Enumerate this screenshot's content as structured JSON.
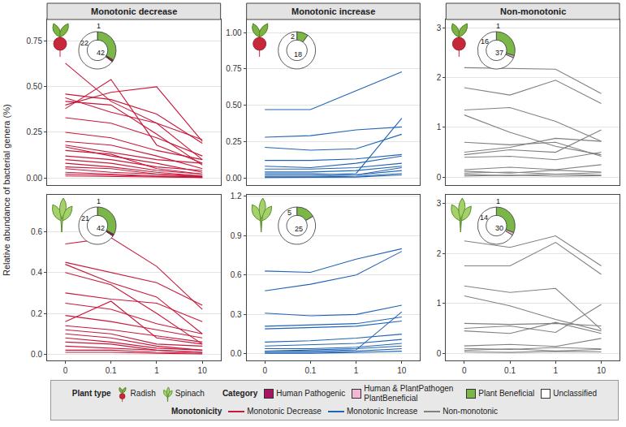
{
  "chart_data": [
    {
      "type": "line",
      "title": "Monotonic decrease",
      "plant": "Radish",
      "x": [
        "0",
        "0.1",
        "1",
        "10"
      ],
      "color": "#c8173a",
      "ylim": [
        -0.04,
        0.87
      ],
      "yticks": [
        {
          "value": 0,
          "label": "0.00"
        },
        0.25,
        {
          "value": 0.5,
          "label": "0.50"
        },
        0.75
      ],
      "grid": true,
      "tick_labels": "y",
      "series": [
        {
          "values": [
            0.63,
            0.42,
            0.3,
            0.21
          ]
        },
        {
          "values": [
            0.46,
            0.43,
            0.35,
            0.19
          ]
        },
        {
          "values": [
            0.44,
            0.36,
            0.3,
            0.1
          ]
        },
        {
          "values": [
            0.42,
            0.4,
            0.24,
            0.07
          ]
        },
        {
          "values": [
            0.38,
            0.54,
            0.18,
            0.08
          ]
        },
        {
          "values": [
            0.4,
            0.47,
            0.5,
            0.2
          ]
        },
        {
          "values": [
            0.33,
            0.3,
            0.22,
            0.12
          ]
        },
        {
          "values": [
            0.25,
            0.22,
            0.15,
            0.1
          ]
        },
        {
          "values": [
            0.2,
            0.18,
            0.12,
            0.05
          ]
        },
        {
          "values": [
            0.18,
            0.14,
            0.1,
            0.08
          ]
        },
        {
          "values": [
            0.17,
            0.12,
            0.08,
            0.03
          ]
        },
        {
          "values": [
            0.15,
            0.13,
            0.05,
            0.02
          ]
        },
        {
          "values": [
            0.12,
            0.1,
            0.06,
            0.04
          ]
        },
        {
          "values": [
            0.1,
            0.08,
            0.04,
            0.02
          ]
        },
        {
          "values": [
            0.08,
            0.06,
            0.03,
            0.01
          ]
        },
        {
          "values": [
            0.06,
            0.05,
            0.02,
            0.01
          ]
        },
        {
          "values": [
            0.05,
            0.03,
            0.02,
            0.005
          ]
        },
        {
          "values": [
            0.03,
            0.02,
            0.01,
            0.005
          ]
        },
        {
          "values": [
            0.02,
            0.015,
            0.01,
            0.002
          ]
        },
        {
          "values": [
            0.01,
            0.008,
            0.004,
            0.001
          ]
        }
      ],
      "inset": {
        "type": "pie",
        "categories": [
          "Plant Beneficial",
          "Unclassified",
          "Human Pathogenic"
        ],
        "values": [
          22,
          42,
          1
        ],
        "colors": [
          "#7ab648",
          "#ffffff",
          "#a8155f"
        ],
        "data_labels": true
      }
    },
    {
      "type": "line",
      "title": "Monotonic increase",
      "plant": "Radish",
      "x": [
        "0",
        "0.1",
        "1",
        "10"
      ],
      "color": "#2164b5",
      "ylim": [
        -0.05,
        1.09
      ],
      "yticks": [
        {
          "value": 0,
          "label": "0.00"
        },
        0.25,
        {
          "value": 0.5,
          "label": "0.50"
        },
        0.75,
        {
          "value": 1,
          "label": "1.00"
        }
      ],
      "grid": true,
      "tick_labels": "y",
      "series": [
        {
          "values": [
            0.47,
            0.47,
            0.6,
            0.73
          ]
        },
        {
          "values": [
            0.28,
            0.29,
            0.33,
            0.35
          ]
        },
        {
          "values": [
            0.21,
            0.19,
            0.2,
            0.3
          ]
        },
        {
          "values": [
            0.12,
            0.12,
            0.13,
            0.16
          ]
        },
        {
          "values": [
            0.08,
            0.07,
            0.1,
            0.15
          ]
        },
        {
          "values": [
            0.02,
            0.02,
            0.03,
            0.41
          ]
        },
        {
          "values": [
            0.06,
            0.06,
            0.07,
            0.1
          ]
        },
        {
          "values": [
            0.04,
            0.04,
            0.05,
            0.08
          ]
        },
        {
          "values": [
            0.03,
            0.03,
            0.02,
            0.07
          ]
        },
        {
          "values": [
            0.01,
            0.01,
            0.02,
            0.05
          ]
        },
        {
          "values": [
            0.005,
            0.005,
            0.01,
            0.03
          ]
        },
        {
          "values": [
            0.002,
            0.002,
            0.005,
            0.02
          ]
        }
      ],
      "inset": {
        "type": "pie",
        "categories": [
          "Plant Beneficial",
          "Unclassified"
        ],
        "values": [
          2,
          18
        ],
        "colors": [
          "#7ab648",
          "#ffffff"
        ],
        "data_labels": true
      }
    },
    {
      "type": "line",
      "title": "Non-monotonic",
      "plant": "Radish",
      "x": [
        "0",
        "0.1",
        "1",
        "10"
      ],
      "color": "#808080",
      "ylim": [
        -0.16,
        3.17
      ],
      "yticks": [
        0,
        1,
        2,
        3
      ],
      "grid": true,
      "tick_labels": "y",
      "series": [
        {
          "values": [
            2.2,
            2.18,
            2.17,
            1.68
          ]
        },
        {
          "values": [
            1.8,
            1.65,
            1.95,
            1.48
          ]
        },
        {
          "values": [
            1.35,
            1.4,
            1.12,
            0.72
          ]
        },
        {
          "values": [
            1.25,
            0.9,
            0.62,
            0.45
          ]
        },
        {
          "values": [
            0.7,
            0.65,
            0.7,
            0.42
          ]
        },
        {
          "values": [
            0.5,
            0.6,
            0.78,
            0.72
          ]
        },
        {
          "values": [
            0.45,
            0.55,
            0.5,
            0.95
          ]
        },
        {
          "values": [
            0.4,
            0.42,
            0.35,
            0.5
          ]
        },
        {
          "values": [
            0.15,
            0.2,
            0.15,
            0.25
          ]
        },
        {
          "values": [
            0.12,
            0.08,
            0.14,
            0.1
          ]
        },
        {
          "values": [
            0.08,
            0.1,
            0.06,
            0.09
          ]
        },
        {
          "values": [
            0.05,
            0.03,
            0.06,
            0.04
          ]
        },
        {
          "values": [
            0.02,
            0.04,
            0.02,
            0.03
          ]
        }
      ],
      "inset": {
        "type": "pie",
        "categories": [
          "Plant Beneficial",
          "Unclassified",
          "Human & PlantPathogen PlantBeneficial"
        ],
        "values": [
          16,
          37,
          1
        ],
        "colors": [
          "#7ab648",
          "#ffffff",
          "#f2b8d3"
        ],
        "data_labels": true
      }
    },
    {
      "type": "line",
      "plant": "Spinach",
      "x": [
        "0",
        "0.1",
        "1",
        "10"
      ],
      "color": "#c8173a",
      "ylim": [
        -0.03,
        0.78
      ],
      "yticks": [
        {
          "value": 0,
          "label": "0.0"
        },
        0.2,
        0.4,
        0.6
      ],
      "grid": true,
      "series": [
        {
          "values": [
            0.54,
            0.57,
            0.43,
            0.22
          ]
        },
        {
          "values": [
            0.45,
            0.4,
            0.35,
            0.24
          ]
        },
        {
          "values": [
            0.44,
            0.35,
            0.28,
            0.1
          ]
        },
        {
          "values": [
            0.4,
            0.34,
            0.2,
            0.05
          ]
        },
        {
          "values": [
            0.3,
            0.27,
            0.25,
            0.16
          ]
        },
        {
          "values": [
            0.25,
            0.22,
            0.15,
            0.1
          ]
        },
        {
          "values": [
            0.19,
            0.16,
            0.12,
            0.08
          ]
        },
        {
          "values": [
            0.16,
            0.26,
            0.08,
            0.05
          ]
        },
        {
          "values": [
            0.14,
            0.12,
            0.09,
            0.06
          ]
        },
        {
          "values": [
            0.12,
            0.1,
            0.05,
            0.04
          ]
        },
        {
          "values": [
            0.1,
            0.08,
            0.04,
            0.02
          ]
        },
        {
          "values": [
            0.08,
            0.06,
            0.03,
            0.02
          ]
        },
        {
          "values": [
            0.06,
            0.05,
            0.02,
            0.01
          ]
        },
        {
          "values": [
            0.04,
            0.03,
            0.02,
            0.01
          ]
        },
        {
          "values": [
            0.02,
            0.02,
            0.01,
            0.005
          ]
        },
        {
          "values": [
            0.01,
            0.01,
            0.005,
            0.002
          ]
        }
      ],
      "inset": {
        "type": "pie",
        "categories": [
          "Plant Beneficial",
          "Unclassified",
          "Human Pathogenic"
        ],
        "values": [
          21,
          42,
          1
        ],
        "colors": [
          "#7ab648",
          "#ffffff",
          "#a8155f"
        ],
        "data_labels": true
      }
    },
    {
      "type": "line",
      "plant": "Spinach",
      "x": [
        "0",
        "0.1",
        "1",
        "10"
      ],
      "color": "#2164b5",
      "ylim": [
        -0.05,
        1.21
      ],
      "yticks": [
        {
          "value": 0,
          "label": "0.0"
        },
        0.3,
        0.6,
        0.9,
        1.2
      ],
      "grid": true,
      "series": [
        {
          "values": [
            0.63,
            0.62,
            0.72,
            0.8
          ]
        },
        {
          "values": [
            0.48,
            0.53,
            0.6,
            0.78
          ]
        },
        {
          "values": [
            0.31,
            0.29,
            0.3,
            0.37
          ]
        },
        {
          "values": [
            0.21,
            0.22,
            0.23,
            0.28
          ]
        },
        {
          "values": [
            0.19,
            0.2,
            0.21,
            0.25
          ]
        },
        {
          "values": [
            0.09,
            0.1,
            0.12,
            0.15
          ]
        },
        {
          "values": [
            0.06,
            0.07,
            0.08,
            0.11
          ]
        },
        {
          "values": [
            0.02,
            0.02,
            0.03,
            0.32
          ]
        },
        {
          "values": [
            0.04,
            0.04,
            0.05,
            0.08
          ]
        },
        {
          "values": [
            0.02,
            0.03,
            0.04,
            0.06
          ]
        },
        {
          "values": [
            0.01,
            0.01,
            0.02,
            0.04
          ]
        },
        {
          "values": [
            0.005,
            0.005,
            0.01,
            0.02
          ]
        }
      ],
      "inset": {
        "type": "pie",
        "categories": [
          "Plant Beneficial",
          "Unclassified"
        ],
        "values": [
          5,
          25
        ],
        "colors": [
          "#7ab648",
          "#ffffff"
        ],
        "data_labels": true
      }
    },
    {
      "type": "line",
      "plant": "Spinach",
      "x": [
        "0",
        "0.1",
        "1",
        "10"
      ],
      "color": "#808080",
      "ylim": [
        -0.14,
        3.17
      ],
      "yticks": [
        0,
        1,
        2,
        3
      ],
      "grid": true,
      "series": [
        {
          "values": [
            2.25,
            2.12,
            2.35,
            1.75
          ]
        },
        {
          "values": [
            1.75,
            1.75,
            2.22,
            1.58
          ]
        },
        {
          "values": [
            1.35,
            1.22,
            1.3,
            0.48
          ]
        },
        {
          "values": [
            1.15,
            0.95,
            0.68,
            0.45
          ]
        },
        {
          "values": [
            0.6,
            0.58,
            0.6,
            0.55
          ]
        },
        {
          "values": [
            0.5,
            0.55,
            0.42,
            0.98
          ]
        },
        {
          "values": [
            0.45,
            0.4,
            0.62,
            0.4
          ]
        },
        {
          "values": [
            0.15,
            0.18,
            0.14,
            0.3
          ]
        },
        {
          "values": [
            0.1,
            0.08,
            0.12,
            0.09
          ]
        },
        {
          "values": [
            0.06,
            0.09,
            0.05,
            0.08
          ]
        },
        {
          "values": [
            0.03,
            0.02,
            0.04,
            0.03
          ]
        }
      ],
      "inset": {
        "type": "pie",
        "categories": [
          "Plant Beneficial",
          "Unclassified",
          "Human & PlantPathogen PlantBeneficial"
        ],
        "values": [
          14,
          30,
          1
        ],
        "colors": [
          "#7ab648",
          "#ffffff",
          "#f2b8d3"
        ],
        "data_labels": true
      }
    }
  ],
  "ylabel": "Relative abundance of bacterial genera (%)",
  "key": [
    {
      "title": "Plant type",
      "marker": "icon",
      "items": [
        {
          "name": "Radish"
        },
        {
          "name": "Spinach"
        }
      ]
    },
    {
      "title": "Category",
      "marker": "square",
      "items": [
        {
          "name": "Human Pathogenic",
          "color": "#a8155f"
        },
        {
          "name": "Human & PlantPathogen PlantBeneficial",
          "color": "#f2b8d3"
        },
        {
          "name": "Plant Beneficial",
          "color": "#7ab648"
        },
        {
          "name": "Unclassified",
          "color": "#ffffff"
        }
      ]
    },
    {
      "title": "Monotonicity",
      "marker": "line",
      "items": [
        {
          "name": "Monotonic Decrease",
          "color": "#c8173a"
        },
        {
          "name": "Monotonic Increase",
          "color": "#2164b5"
        },
        {
          "name": "Non-monotonic",
          "color": "#808080"
        }
      ]
    }
  ]
}
